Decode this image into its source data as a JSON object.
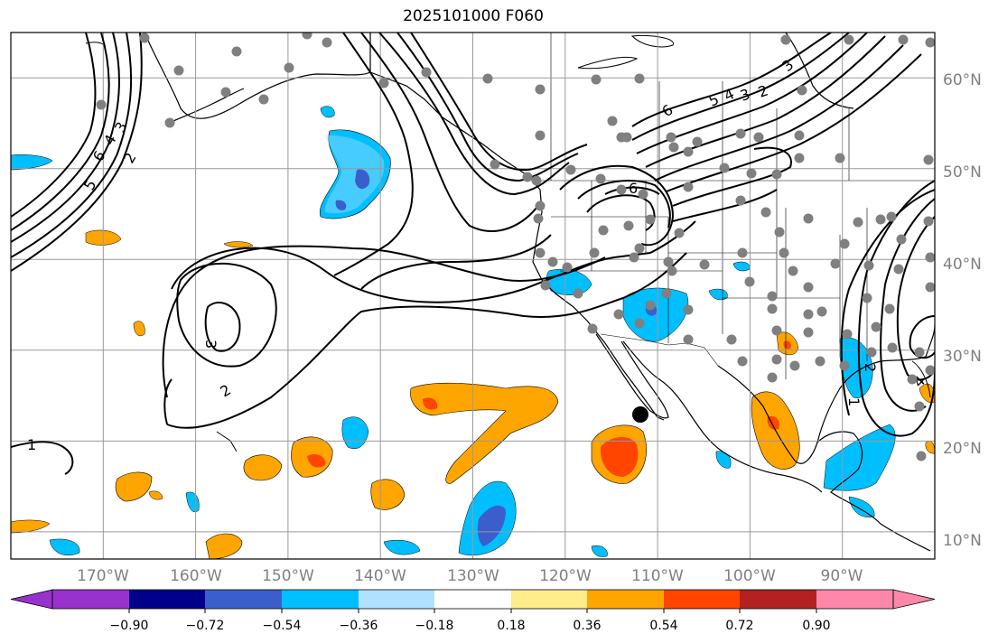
{
  "title": "2025101000 F060",
  "map": {
    "projection": "PlateCarree",
    "lon_range": [
      -180,
      -80
    ],
    "lat_range": [
      7,
      65
    ],
    "gridlines": true,
    "grid_color": "#999999"
  },
  "lon_ticks": [
    {
      "value": -170,
      "label": "170°W"
    },
    {
      "value": -160,
      "label": "160°W"
    },
    {
      "value": -150,
      "label": "150°W"
    },
    {
      "value": -140,
      "label": "140°W"
    },
    {
      "value": -130,
      "label": "130°W"
    },
    {
      "value": -120,
      "label": "120°W"
    },
    {
      "value": -110,
      "label": "110°W"
    },
    {
      "value": -100,
      "label": "100°W"
    },
    {
      "value": -90,
      "label": "90°W"
    }
  ],
  "lat_ticks": [
    {
      "value": 60,
      "label": "60°N"
    },
    {
      "value": 50,
      "label": "50°N"
    },
    {
      "value": 40,
      "label": "40°N"
    },
    {
      "value": 30,
      "label": "30°N"
    },
    {
      "value": 20,
      "label": "20°N"
    },
    {
      "value": 10,
      "label": "10°N"
    }
  ],
  "colorbar": {
    "orientation": "horizontal",
    "extend": "both",
    "tick_labels": [
      "−0.90",
      "−0.72",
      "−0.54",
      "−0.36",
      "−0.18",
      "0.18",
      "0.36",
      "0.54",
      "0.72",
      "0.90"
    ],
    "colors": [
      "#9932cc",
      "#00008b",
      "#3a5fcd",
      "#00bfff",
      "#b0e2ff",
      "#ffffff",
      "#ffec8b",
      "#ffa500",
      "#ff4500",
      "#b22222",
      "#ff88aa"
    ]
  },
  "contour_labels": [
    "5",
    "6",
    "4",
    "3",
    "2",
    "3",
    "2",
    "1",
    "6",
    "5",
    "4",
    "3",
    "2",
    "6",
    "3",
    "2",
    "1",
    "2",
    "4",
    "3"
  ],
  "marker_color": "#808080",
  "storm_marker_color": "#000000"
}
